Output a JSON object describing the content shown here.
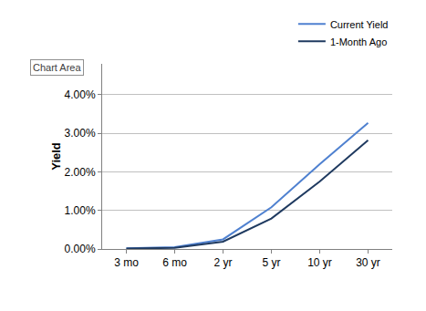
{
  "chart_data": {
    "type": "line",
    "y_label": "Yield",
    "annotations": [
      "Chart Area"
    ],
    "categories": [
      "3 mo",
      "6 mo",
      "2 yr",
      "5 yr",
      "10 yr",
      "30 yr"
    ],
    "series": [
      {
        "name": "Current Yield",
        "color": "#4f81d0",
        "values": [
          0.02,
          0.05,
          0.25,
          1.08,
          2.2,
          3.27
        ]
      },
      {
        "name": "1-Month Ago",
        "color": "#1f3a60",
        "values": [
          0.01,
          0.03,
          0.19,
          0.79,
          1.75,
          2.82
        ]
      }
    ],
    "ylim": [
      0,
      4.8
    ],
    "yticks": [
      {
        "value": 0,
        "label": "0.00%"
      },
      {
        "value": 1,
        "label": "1.00%"
      },
      {
        "value": 2,
        "label": "2.00%"
      },
      {
        "value": 3,
        "label": "3.00%"
      },
      {
        "value": 4,
        "label": "4.00%"
      }
    ],
    "grid": true,
    "legend": "top right"
  }
}
